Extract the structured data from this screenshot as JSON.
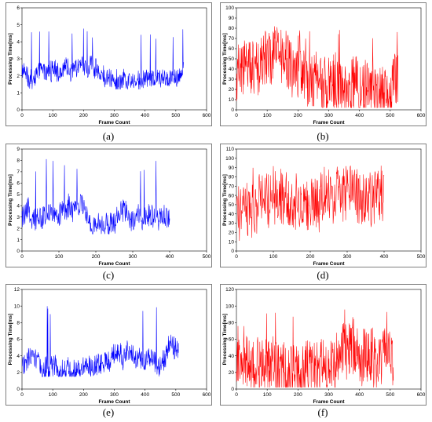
{
  "chart_data": [
    {
      "panel": "(a)",
      "type": "line",
      "color": "#0000ff",
      "xlabel": "Frame Count",
      "ylabel": "Processing Time[ms]",
      "xlim": [
        0,
        600
      ],
      "ylim": [
        0,
        6
      ],
      "xticks": [
        0,
        100,
        200,
        300,
        400,
        500,
        600
      ],
      "yticks": [
        0,
        1,
        2,
        3,
        4,
        5,
        6
      ],
      "series": [
        {
          "x_range": [
            0,
            525
          ],
          "approx_min": 1.2,
          "approx_max": 4.9,
          "typical": 2.3
        }
      ]
    },
    {
      "panel": "(b)",
      "type": "line",
      "color": "#ff0000",
      "xlabel": "Frame Count",
      "ylabel": "Processing Time[ms]",
      "xlim": [
        0,
        600
      ],
      "ylim": [
        0,
        100
      ],
      "xticks": [
        0,
        100,
        200,
        300,
        400,
        500,
        600
      ],
      "yticks": [
        0,
        10,
        20,
        30,
        40,
        50,
        60,
        70,
        80,
        90,
        100
      ],
      "series": [
        {
          "x_range": [
            0,
            525
          ],
          "approx_min": 2,
          "approx_max": 82,
          "typical": 35
        }
      ]
    },
    {
      "panel": "(c)",
      "type": "line",
      "color": "#0000ff",
      "xlabel": "Frame Count",
      "ylabel": "Processing Time[ms]",
      "xlim": [
        0,
        500
      ],
      "ylim": [
        0,
        9
      ],
      "xticks": [
        0,
        100,
        200,
        300,
        400,
        500
      ],
      "yticks": [
        0,
        1,
        2,
        3,
        4,
        5,
        6,
        7,
        8,
        9
      ],
      "series": [
        {
          "x_range": [
            0,
            400
          ],
          "approx_min": 1.5,
          "approx_max": 8.2,
          "typical": 2.8
        }
      ]
    },
    {
      "panel": "(d)",
      "type": "line",
      "color": "#ff0000",
      "xlabel": "Frame Count",
      "ylabel": "Processing Time[ms]",
      "xlim": [
        0,
        500
      ],
      "ylim": [
        0,
        110
      ],
      "xticks": [
        0,
        100,
        200,
        300,
        400,
        500
      ],
      "yticks": [
        0,
        10,
        20,
        30,
        40,
        50,
        60,
        70,
        80,
        90,
        100,
        110
      ],
      "series": [
        {
          "x_range": [
            0,
            400
          ],
          "approx_min": 5,
          "approx_max": 92,
          "typical": 42
        }
      ]
    },
    {
      "panel": "(e)",
      "type": "line",
      "color": "#0000ff",
      "xlabel": "Frame Count",
      "ylabel": "Processing Time[ms]",
      "xlim": [
        0,
        600
      ],
      "ylim": [
        0,
        12
      ],
      "xticks": [
        0,
        100,
        200,
        300,
        400,
        500,
        600
      ],
      "yticks": [
        0,
        2,
        4,
        6,
        8,
        10,
        12
      ],
      "series": [
        {
          "x_range": [
            0,
            510
          ],
          "approx_min": 1.5,
          "approx_max": 10.4,
          "typical": 2.8
        }
      ]
    },
    {
      "panel": "(f)",
      "type": "line",
      "color": "#ff0000",
      "xlabel": "Frame Count",
      "ylabel": "Processing Time[ms]",
      "xlim": [
        0,
        600
      ],
      "ylim": [
        0,
        120
      ],
      "xticks": [
        0,
        100,
        200,
        300,
        400,
        500,
        600
      ],
      "yticks": [
        0,
        20,
        40,
        60,
        80,
        100,
        120
      ],
      "series": [
        {
          "x_range": [
            0,
            510
          ],
          "approx_min": 2,
          "approx_max": 102,
          "typical": 40
        }
      ]
    }
  ]
}
